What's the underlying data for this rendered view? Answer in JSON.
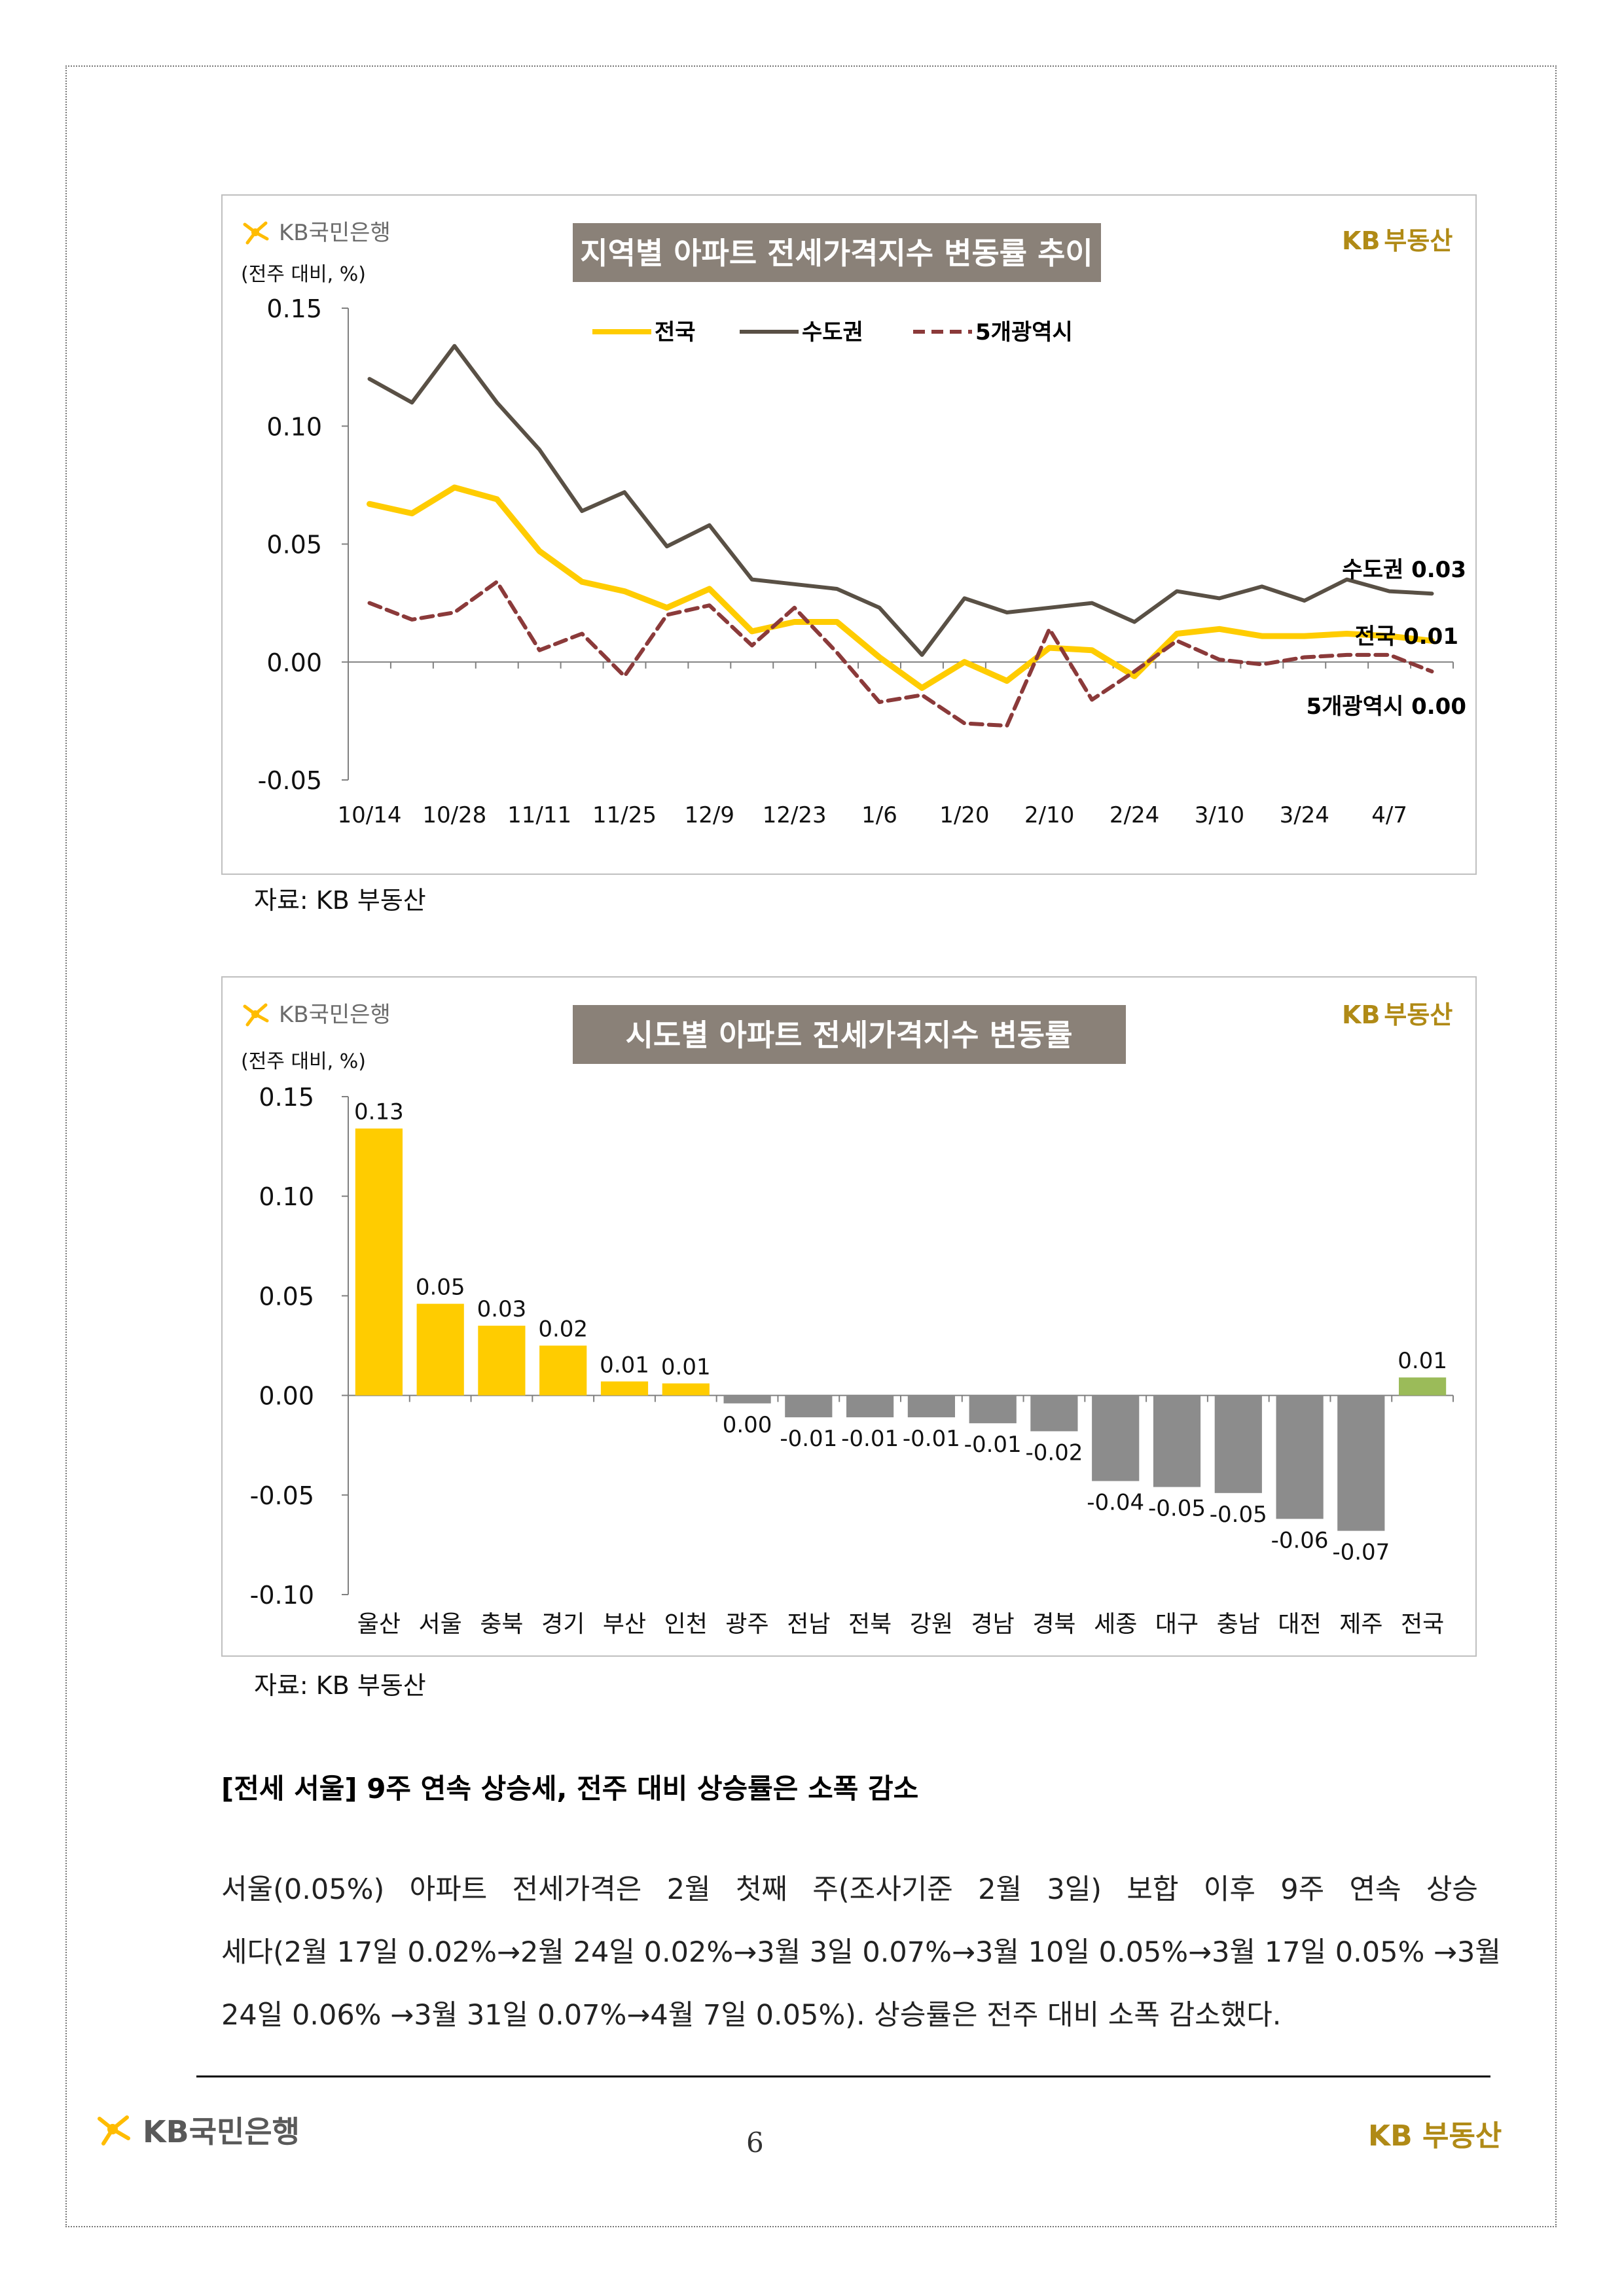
{
  "brand": {
    "bank": "KB국민은행",
    "realty": "KB부동산",
    "realty_kb": "KB",
    "realty_word": "부동산"
  },
  "chart1": {
    "title": "지역별 아파트 전세가격지수 변동률 추이",
    "unit": "(전주 대비, %)",
    "source": "자료: KB 부동산",
    "end_labels": [
      "수도권 0.03",
      "전국 0.01",
      "5개광역시 0.00"
    ]
  },
  "chart2": {
    "title": "시도별 아파트 전세가격지수 변동률",
    "unit": "(전주 대비, %)",
    "source": "자료: KB 부동산"
  },
  "colors": {
    "yellow": "#ffcc00",
    "gray_line": "#595045",
    "red_dash": "#8b3a3a",
    "bar_gray": "#8c8c8c",
    "bar_green": "#9bbb59",
    "title_bg": "#8a8178"
  },
  "chart_data": [
    {
      "type": "line",
      "title": "지역별 아파트 전세가격지수 변동률 추이",
      "ylabel": "(전주 대비, %)",
      "ylim": [
        -0.05,
        0.15
      ],
      "yticks": [
        "0.15",
        "0.10",
        "0.05",
        "0.00",
        "-0.05"
      ],
      "xtick_labels": [
        "10/14",
        "10/28",
        "11/11",
        "11/25",
        "12/9",
        "12/23",
        "1/6",
        "1/20",
        "2/10",
        "2/24",
        "3/10",
        "3/24",
        "4/7"
      ],
      "points": 26,
      "series": [
        {
          "name": "전국",
          "values": [
            0.067,
            0.063,
            0.074,
            0.069,
            0.047,
            0.034,
            0.03,
            0.023,
            0.031,
            0.013,
            0.017,
            0.017,
            0.002,
            -0.011,
            0.0,
            -0.008,
            0.006,
            0.005,
            -0.006,
            0.012,
            0.014,
            0.011,
            0.011,
            0.012,
            0.011,
            0.009
          ]
        },
        {
          "name": "수도권",
          "values": [
            0.12,
            0.11,
            0.134,
            0.11,
            0.09,
            0.064,
            0.072,
            0.049,
            0.058,
            0.035,
            0.033,
            0.031,
            0.023,
            0.003,
            0.027,
            0.021,
            0.023,
            0.025,
            0.017,
            0.03,
            0.027,
            0.032,
            0.026,
            0.035,
            0.03,
            0.029
          ]
        },
        {
          "name": "5개광역시",
          "values": [
            0.025,
            0.018,
            0.021,
            0.034,
            0.005,
            0.012,
            -0.006,
            0.02,
            0.024,
            0.007,
            0.023,
            0.004,
            -0.017,
            -0.014,
            -0.026,
            -0.027,
            0.014,
            -0.016,
            -0.004,
            0.009,
            0.001,
            -0.001,
            0.002,
            0.003,
            0.003,
            -0.004
          ]
        }
      ]
    },
    {
      "type": "bar",
      "title": "시도별 아파트 전세가격지수 변동률",
      "ylabel": "(전주 대비, %)",
      "ylim": [
        -0.1,
        0.15
      ],
      "yticks": [
        "0.15",
        "0.10",
        "0.05",
        "0.00",
        "-0.05",
        "-0.10"
      ],
      "categories": [
        "울산",
        "서울",
        "충북",
        "경기",
        "부산",
        "인천",
        "광주",
        "전남",
        "전북",
        "강원",
        "경남",
        "경북",
        "세종",
        "대구",
        "충남",
        "대전",
        "제주",
        "전국"
      ],
      "values": [
        0.134,
        0.046,
        0.035,
        0.025,
        0.007,
        0.006,
        -0.004,
        -0.011,
        -0.011,
        -0.011,
        -0.014,
        -0.018,
        -0.043,
        -0.046,
        -0.049,
        -0.062,
        -0.068,
        0.009
      ],
      "value_labels": [
        "0.13",
        "0.05",
        "0.03",
        "0.02",
        "0.01",
        "0.01",
        "0.00",
        "-0.01",
        "-0.01",
        "-0.01",
        "-0.01",
        "-0.02",
        "-0.04",
        "-0.05",
        "-0.05",
        "-0.06",
        "-0.07",
        "0.01"
      ]
    }
  ],
  "article": {
    "heading": "[전세 서울] 9주 연속 상승세, 전주 대비 상승률은 소폭 감소",
    "lines": [
      "서울(0.05%) 아파트 전세가격은 2월 첫째 주(조사기준 2월 3일) 보합 이후 9주 연속 상승",
      "세다(2월 17일 0.02%→2월 24일 0.02%→3월 3일 0.07%→3월 10일 0.05%→3월 17일 0.05% →3월",
      "24일 0.06% →3월 31일 0.07%→4월 7일 0.05%). 상승률은 전주 대비 소폭 감소했다."
    ]
  },
  "page_number": "6"
}
